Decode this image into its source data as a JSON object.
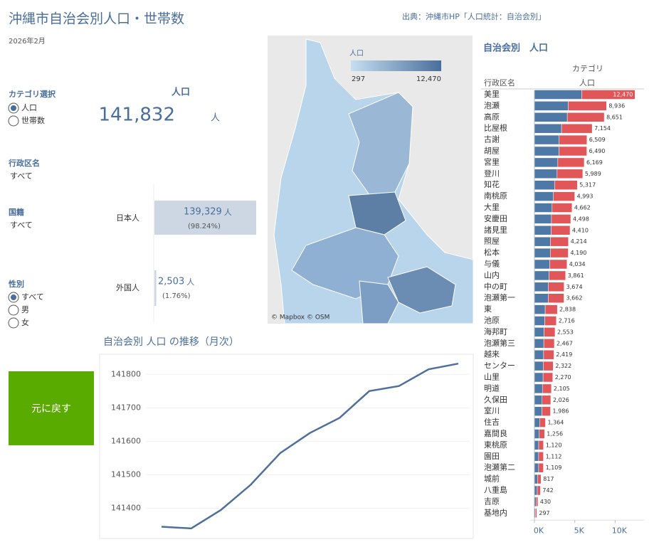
{
  "header": {
    "title": "沖縄市自治会別人口・世帯数",
    "date": "2026年2月",
    "source": "出典：沖縄市HP「人口統計：自治会別」"
  },
  "filters": {
    "category": {
      "label": "カテゴリ選択",
      "options": [
        "人口",
        "世帯数"
      ],
      "selected": 0
    },
    "district": {
      "label": "行政区名",
      "value": "すべて"
    },
    "nationality": {
      "label": "国籍",
      "value": "すべて"
    },
    "sex": {
      "label": "性別",
      "options": [
        "すべて",
        "男",
        "女"
      ],
      "selected": 0
    }
  },
  "summary": {
    "label": "人口",
    "total": "141,832",
    "unit": "人"
  },
  "nationality_breakdown": {
    "type": "bar",
    "categories": [
      "日本人",
      "外国人"
    ],
    "values": [
      139329,
      2503
    ],
    "value_labels": [
      "139,329",
      "2,503"
    ],
    "unit": "人",
    "shares": [
      "(98.24%)",
      "(1.76%)"
    ],
    "color": "#cdd7e4"
  },
  "button": {
    "label": "元に戻す"
  },
  "map": {
    "legend_title": "人口",
    "legend_min": "297",
    "legend_max": "12,470",
    "credit": "© Mapbox © OSM"
  },
  "chart_data": [
    {
      "type": "line",
      "title": "自治会別 人口 の推移（月次）",
      "categories": [
        null,
        null,
        null,
        null,
        null,
        null,
        null,
        null,
        null,
        null,
        null
      ],
      "values": [
        141345,
        141340,
        141395,
        141470,
        141565,
        141625,
        141670,
        141750,
        141765,
        141815,
        141832
      ],
      "color": "#4e6f9a",
      "ylim": [
        141310,
        141860
      ],
      "yticks": [
        141400,
        141500,
        141600,
        141700,
        141800
      ],
      "grid": true
    },
    {
      "type": "stacked_bar",
      "title": "自治会別　人口",
      "header": "カテゴリ",
      "row_label": "行政区名",
      "column_label": "人口",
      "categories": [
        "美里",
        "泡瀬",
        "高原",
        "比屋根",
        "古謝",
        "胡屋",
        "宮里",
        "登川",
        "知花",
        "南桃原",
        "大里",
        "安慶田",
        "諸見里",
        "照屋",
        "松本",
        "与儀",
        "山内",
        "中の町",
        "泡瀬第一",
        "東",
        "池原",
        "海邦町",
        "泡瀬第三",
        "越来",
        "センター",
        "山里",
        "明道",
        "久保田",
        "室川",
        "住吉",
        "嘉間良",
        "東桃原",
        "園田",
        "泡瀬第二",
        "城前",
        "八重島",
        "吉原",
        "基地内"
      ],
      "series": [
        {
          "color": "#4e79a7",
          "values": [
            5860,
            4200,
            4070,
            3360,
            3060,
            3050,
            2900,
            2810,
            2500,
            2350,
            2190,
            2110,
            2070,
            1980,
            1970,
            1900,
            1810,
            1730,
            1720,
            1330,
            1280,
            1200,
            1160,
            1140,
            1090,
            1070,
            990,
            950,
            930,
            640,
            590,
            530,
            520,
            520,
            380,
            350,
            200,
            140
          ]
        },
        {
          "color": "#e15759",
          "values": [
            6610,
            4736,
            4581,
            3794,
            3449,
            3440,
            3269,
            3179,
            2817,
            2643,
            2472,
            2388,
            2340,
            2234,
            2220,
            2134,
            2051,
            1944,
            1942,
            1508,
            1436,
            1353,
            1307,
            1279,
            1232,
            1200,
            1115,
            1076,
            1056,
            724,
            666,
            590,
            592,
            589,
            437,
            392,
            230,
            157
          ]
        }
      ],
      "totals": [
        12470,
        8936,
        8651,
        7154,
        6509,
        6490,
        6169,
        5989,
        5317,
        4993,
        4662,
        4498,
        4410,
        4214,
        4190,
        4034,
        3861,
        3674,
        3662,
        2838,
        2716,
        2553,
        2467,
        2419,
        2322,
        2270,
        2105,
        2026,
        1986,
        1364,
        1256,
        1120,
        1112,
        1109,
        817,
        742,
        430,
        297
      ],
      "total_labels": [
        "12,470",
        "8,936",
        "8,651",
        "7,154",
        "6,509",
        "6,490",
        "6,169",
        "5,989",
        "5,317",
        "4,993",
        "4,662",
        "4,498",
        "4,410",
        "4,214",
        "4,190",
        "4,034",
        "3,861",
        "3,674",
        "3,662",
        "2,838",
        "2,716",
        "2,553",
        "2,467",
        "2,419",
        "2,322",
        "2,270",
        "2,105",
        "2,026",
        "1,986",
        "1,364",
        "1,256",
        "1,120",
        "1,112",
        "1,109",
        "817",
        "742",
        "430",
        "297"
      ],
      "xlim": [
        0,
        12700
      ],
      "xticks": [
        {
          "value": 0,
          "label": "0K"
        },
        {
          "value": 5000,
          "label": "5K"
        },
        {
          "value": 10000,
          "label": "10K"
        }
      ]
    }
  ]
}
